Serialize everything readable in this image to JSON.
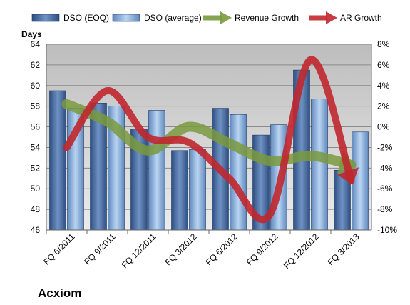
{
  "company": "Acxiom",
  "chart_data": {
    "type": "bar",
    "title": "",
    "y_left_label": "Days",
    "ylim_left": [
      46,
      64
    ],
    "y_left_ticks": [
      46,
      48,
      50,
      52,
      54,
      56,
      58,
      60,
      62,
      64
    ],
    "ylim_right": [
      -10,
      8
    ],
    "y_right_ticks": [
      "-10%",
      "-8%",
      "-6%",
      "-4%",
      "-2%",
      "0%",
      "2%",
      "4%",
      "6%",
      "8%"
    ],
    "y_right_values": [
      -10,
      -8,
      -6,
      -4,
      -2,
      0,
      2,
      4,
      6,
      8
    ],
    "categories": [
      "FQ 6/2011",
      "FQ 9/2011",
      "FQ 12/2011",
      "FQ 3/2012",
      "FQ 6/2012",
      "FQ 9/2012",
      "FQ 12/2012",
      "FQ 3/2013"
    ],
    "legend_position": "top",
    "grid": true,
    "series": [
      {
        "name": "DSO (EOQ)",
        "kind": "bar",
        "axis": "left",
        "color": "#4a6fa5",
        "values": [
          59.5,
          58.3,
          55.8,
          53.7,
          57.8,
          55.2,
          61.5,
          51.8
        ]
      },
      {
        "name": "DSO (average)",
        "kind": "bar",
        "axis": "left",
        "color": "#8fb5e0",
        "values": [
          57.8,
          58.0,
          57.6,
          53.8,
          57.2,
          56.2,
          58.7,
          55.5
        ]
      },
      {
        "name": "Revenue Growth",
        "kind": "line",
        "axis": "right",
        "color": "#7a9a3e",
        "values": [
          2.2,
          0.5,
          -2.3,
          0.0,
          -1.6,
          -3.3,
          -2.8,
          -3.7
        ]
      },
      {
        "name": "AR Growth",
        "kind": "line",
        "axis": "right",
        "color": "#c0272d",
        "values": [
          -2.0,
          3.5,
          -1.0,
          -1.5,
          -5.0,
          -8.5,
          6.5,
          -5.2
        ]
      }
    ]
  }
}
